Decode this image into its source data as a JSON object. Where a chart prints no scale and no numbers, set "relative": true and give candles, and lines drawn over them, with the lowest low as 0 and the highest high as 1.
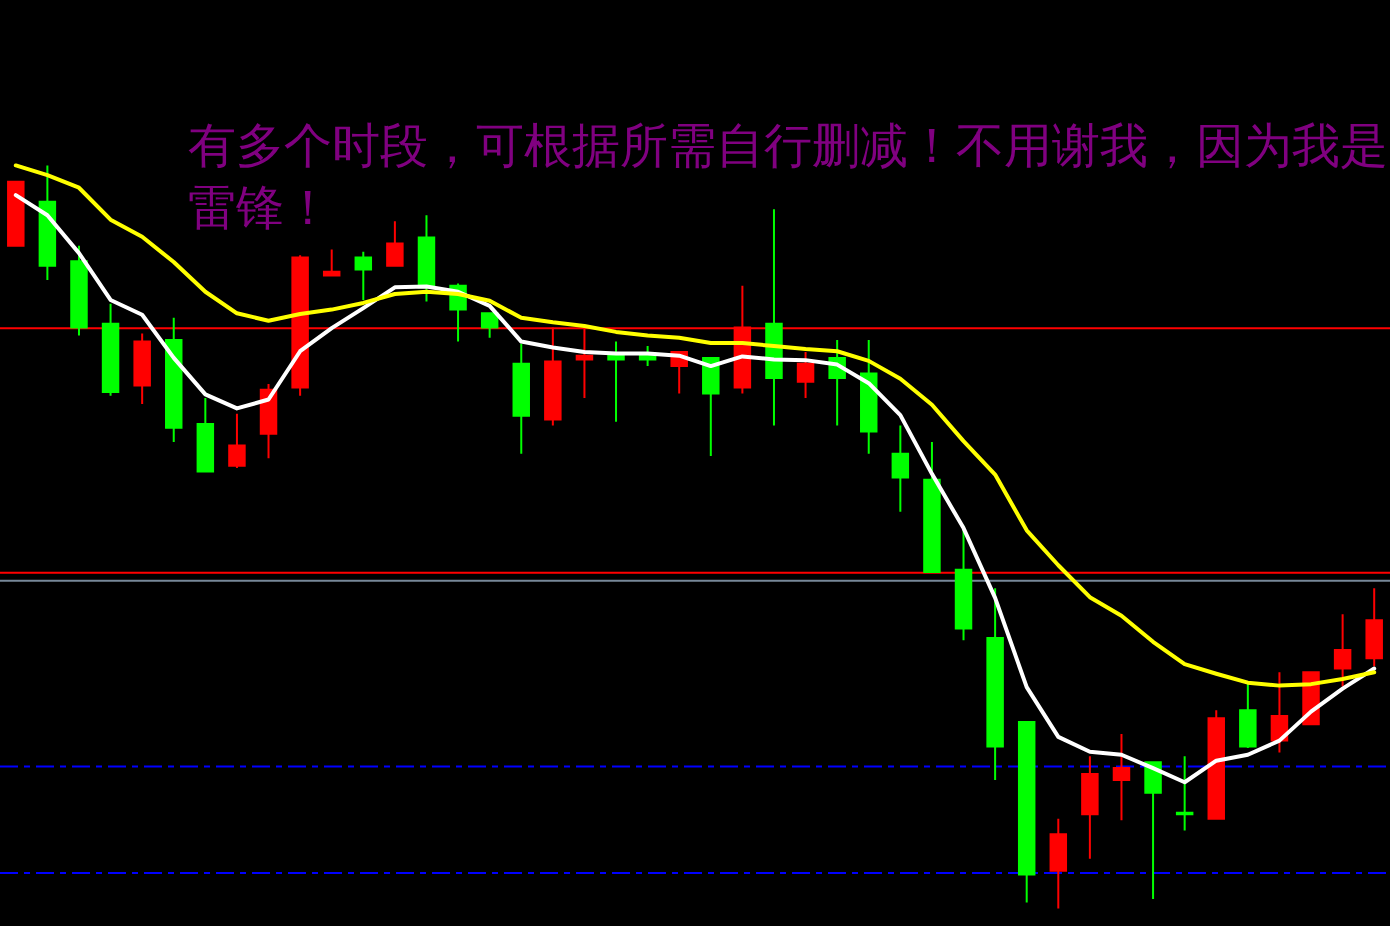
{
  "chart_data": {
    "type": "candlestick",
    "relative": true,
    "annotations": [
      "有多个时段，可根据所需自行删减！不用谢我，因为我是雷锋！"
    ],
    "categories": [
      null,
      null,
      null,
      null,
      null,
      null,
      null,
      null,
      null,
      null,
      null,
      null,
      null,
      null,
      null,
      null,
      null,
      null,
      null,
      null,
      null,
      null,
      null,
      null,
      null,
      null,
      null,
      null,
      null,
      null,
      null,
      null,
      null,
      null,
      null,
      null,
      null,
      null,
      null,
      null,
      null,
      null,
      null,
      null
    ],
    "ohlc": [
      [
        0.892,
        0.978,
        0.892,
        0.978
      ],
      [
        0.951,
        1,
        0.846,
        0.865
      ],
      [
        0.871,
        0.892,
        0.771,
        0.782
      ],
      [
        0.787,
        0.814,
        0.69,
        0.695
      ],
      [
        0.704,
        0.774,
        0.679,
        0.763
      ],
      [
        0.765,
        0.795,
        0.628,
        0.647
      ],
      [
        0.652,
        0.687,
        0.588,
        0.588
      ],
      [
        0.596,
        0.666,
        0.593,
        0.623
      ],
      [
        0.639,
        0.706,
        0.606,
        0.698
      ],
      [
        0.701,
        0.879,
        0.69,
        0.876
      ],
      [
        0.852,
        0.887,
        0.852,
        0.857
      ],
      [
        0.876,
        0.884,
        0.819,
        0.86
      ],
      [
        0.865,
        0.925,
        0.865,
        0.895
      ],
      [
        0.903,
        0.933,
        0.817,
        0.836
      ],
      [
        0.838,
        0.841,
        0.763,
        0.806
      ],
      [
        0.801,
        0.801,
        0.768,
        0.782
      ],
      [
        0.733,
        0.76,
        0.612,
        0.663
      ],
      [
        0.658,
        0.782,
        0.65,
        0.736
      ],
      [
        0.739,
        0.782,
        0.687,
        0.744
      ],
      [
        0.747,
        0.763,
        0.655,
        0.739
      ],
      [
        0.747,
        0.757,
        0.73,
        0.739
      ],
      [
        0.73,
        0.749,
        0.693,
        0.749
      ],
      [
        0.741,
        0.741,
        0.609,
        0.693
      ],
      [
        0.701,
        0.838,
        0.693,
        0.782
      ],
      [
        0.787,
        0.941,
        0.65,
        0.714
      ],
      [
        0.709,
        0.749,
        0.687,
        0.733
      ],
      [
        0.741,
        0.765,
        0.65,
        0.714
      ],
      [
        0.72,
        0.765,
        0.612,
        0.642
      ],
      [
        0.612,
        0.65,
        0.534,
        0.58
      ],
      [
        0.577,
        0.628,
        0.453,
        0.453
      ],
      [
        0.456,
        0.515,
        0.361,
        0.377
      ],
      [
        0.364,
        0.431,
        0.173,
        0.218
      ],
      [
        0.251,
        0.251,
        0.008,
        0.046
      ],
      [
        0.051,
        0.121,
        0,
        0.1
      ],
      [
        0.127,
        0.205,
        0.067,
        0.181
      ],
      [
        0.173,
        0.235,
        0.119,
        0.189
      ],
      [
        0.197,
        0.197,
        0.013,
        0.156
      ],
      [
        0.129,
        0.205,
        0.105,
        0.127
      ],
      [
        0.121,
        0.267,
        0.121,
        0.256
      ],
      [
        0.267,
        0.305,
        0.216,
        0.218
      ],
      [
        0.226,
        0.318,
        0.21,
        0.259
      ],
      [
        0.248,
        0.318,
        0.248,
        0.318
      ],
      [
        0.323,
        0.396,
        0.299,
        0.348
      ],
      [
        0.337,
        0.431,
        0.326,
        0.388
      ]
    ],
    "colors": [
      "#ff0000",
      "#00ff00",
      "#00ff00",
      "#00ff00",
      "#ff0000",
      "#00ff00",
      "#00ff00",
      "#ff0000",
      "#ff0000",
      "#ff0000",
      "#ff0000",
      "#00ff00",
      "#ff0000",
      "#00ff00",
      "#00ff00",
      "#00ff00",
      "#00ff00",
      "#ff0000",
      "#ff0000",
      "#00ff00",
      "#00ff00",
      "#ff0000",
      "#00ff00",
      "#ff0000",
      "#00ff00",
      "#ff0000",
      "#00ff00",
      "#00ff00",
      "#00ff00",
      "#00ff00",
      "#00ff00",
      "#00ff00",
      "#00ff00",
      "#ff0000",
      "#ff0000",
      "#ff0000",
      "#00ff00",
      "#00ff00",
      "#ff0000",
      "#00ff00",
      "#ff0000",
      "#ff0000",
      "#ff0000",
      "#ff0000"
    ],
    "series": [
      {
        "type": "line",
        "color": "#ffffff",
        "values": [
          0.96,
          0.933,
          0.882,
          0.819,
          0.799,
          0.741,
          0.692,
          0.673,
          0.685,
          0.75,
          0.781,
          0.808,
          0.836,
          0.837,
          0.83,
          0.811,
          0.763,
          0.755,
          0.749,
          0.747,
          0.747,
          0.744,
          0.73,
          0.743,
          0.739,
          0.738,
          0.732,
          0.707,
          0.664,
          0.585,
          0.512,
          0.418,
          0.298,
          0.231,
          0.211,
          0.207,
          0.189,
          0.17,
          0.199,
          0.207,
          0.226,
          0.265,
          0.296,
          0.323
        ]
      },
      {
        "type": "line",
        "color": "#ffff00",
        "values": [
          1,
          0.987,
          0.97,
          0.927,
          0.904,
          0.87,
          0.83,
          0.801,
          0.791,
          0.8,
          0.806,
          0.815,
          0.827,
          0.83,
          0.827,
          0.818,
          0.795,
          0.789,
          0.784,
          0.776,
          0.771,
          0.768,
          0.761,
          0.761,
          0.757,
          0.753,
          0.75,
          0.737,
          0.713,
          0.678,
          0.629,
          0.584,
          0.509,
          0.462,
          0.419,
          0.394,
          0.359,
          0.329,
          0.316,
          0.304,
          0.3,
          0.302,
          0.309,
          0.318
        ]
      }
    ],
    "ref_lines": [
      {
        "axis": "y",
        "value": 0.781,
        "color": "#ff0000",
        "line_style": "solid"
      },
      {
        "axis": "y",
        "value": 0.452,
        "color": "#ff0000",
        "line_style": "solid"
      },
      {
        "axis": "y",
        "value": 0.441,
        "color": "#778899",
        "line_style": "solid"
      },
      {
        "axis": "y",
        "value": 0.191,
        "color": "#0000ff",
        "line_style": "dashed"
      },
      {
        "axis": "y",
        "value": 0.048,
        "color": "#0000ff",
        "line_style": "dashed"
      }
    ]
  }
}
